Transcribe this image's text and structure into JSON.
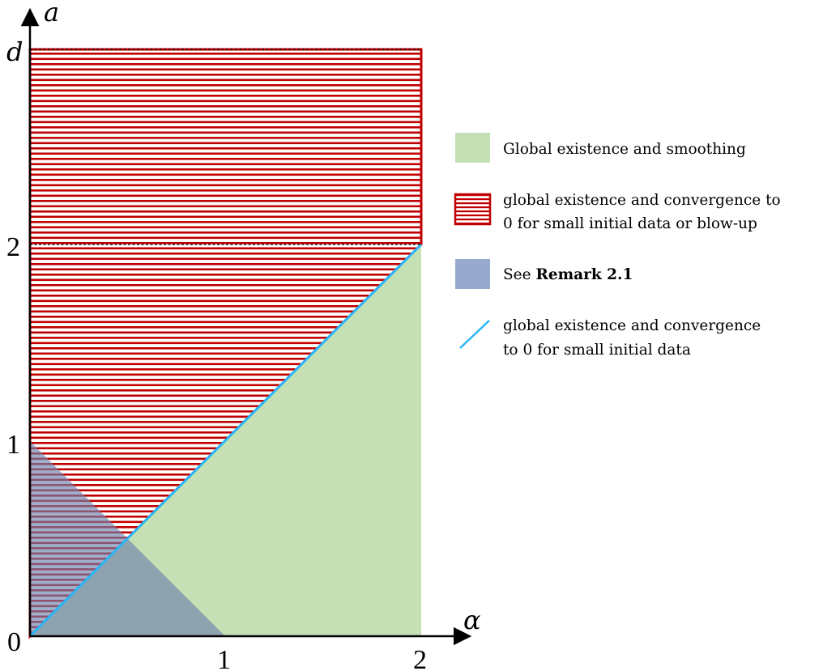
{
  "axes": {
    "x_label": "α",
    "y_label": "a",
    "origin_label": "0",
    "x_ticks": [
      "1",
      "2"
    ],
    "y_ticks": [
      "1",
      "2",
      "d"
    ]
  },
  "colors": {
    "green": "#c5e0b4",
    "red": "#c00000",
    "blue": "#8497b0",
    "line": "#29b6f6"
  },
  "legend": {
    "green": {
      "line1": "Global existence and smoothing"
    },
    "red": {
      "line1": "global existence and convergence to",
      "line2": "0 for small initial data or blow-up"
    },
    "blue": {
      "prefix": "See ",
      "ref": "Remark 2.1"
    },
    "line": {
      "line1": "global existence and convergence",
      "line2": "to 0 for small initial data"
    }
  }
}
